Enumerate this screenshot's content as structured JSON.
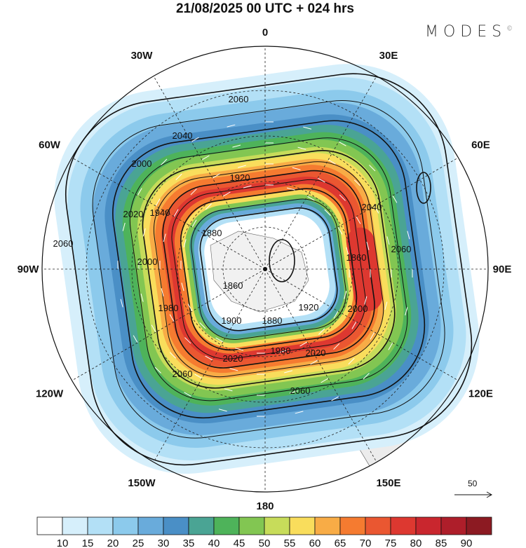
{
  "title": "21/08/2025  00 UTC  + 024 hrs",
  "logo": "MODES",
  "logo_mark": "©",
  "longitude_labels": [
    {
      "text": "0",
      "lon": 0
    },
    {
      "text": "30E",
      "lon": 30
    },
    {
      "text": "60E",
      "lon": 60
    },
    {
      "text": "90E",
      "lon": 90
    },
    {
      "text": "120E",
      "lon": 120
    },
    {
      "text": "150E",
      "lon": 150
    },
    {
      "text": "180",
      "lon": 180
    },
    {
      "text": "150W",
      "lon": 210
    },
    {
      "text": "120W",
      "lon": 240
    },
    {
      "text": "90W",
      "lon": 270
    },
    {
      "text": "60W",
      "lon": 300
    },
    {
      "text": "30W",
      "lon": 330
    }
  ],
  "contour_labels": [
    "2060",
    "2040",
    "2000",
    "1920",
    "1880",
    "1940",
    "2020",
    "2060",
    "2000",
    "1980",
    "1860",
    "1900",
    "1880",
    "1920",
    "2020",
    "1980",
    "2020",
    "2060",
    "2060",
    "2040",
    "2060",
    "1860",
    "2000"
  ],
  "reference_vector": {
    "label": "50"
  },
  "colorbar": {
    "labels": [
      "10",
      "15",
      "20",
      "25",
      "30",
      "35",
      "40",
      "45",
      "50",
      "55",
      "60",
      "65",
      "70",
      "75",
      "80",
      "85",
      "90"
    ],
    "colors": [
      "#ffffff",
      "#d6effb",
      "#b3e0f6",
      "#8ccaec",
      "#69abdb",
      "#4a8fc6",
      "#4aa494",
      "#4eb35a",
      "#82c652",
      "#c7dc5a",
      "#f9dd5c",
      "#f8ac46",
      "#f57b30",
      "#ea5731",
      "#dd3830",
      "#c9262e",
      "#ae1e2a",
      "#8c1a22"
    ]
  }
}
